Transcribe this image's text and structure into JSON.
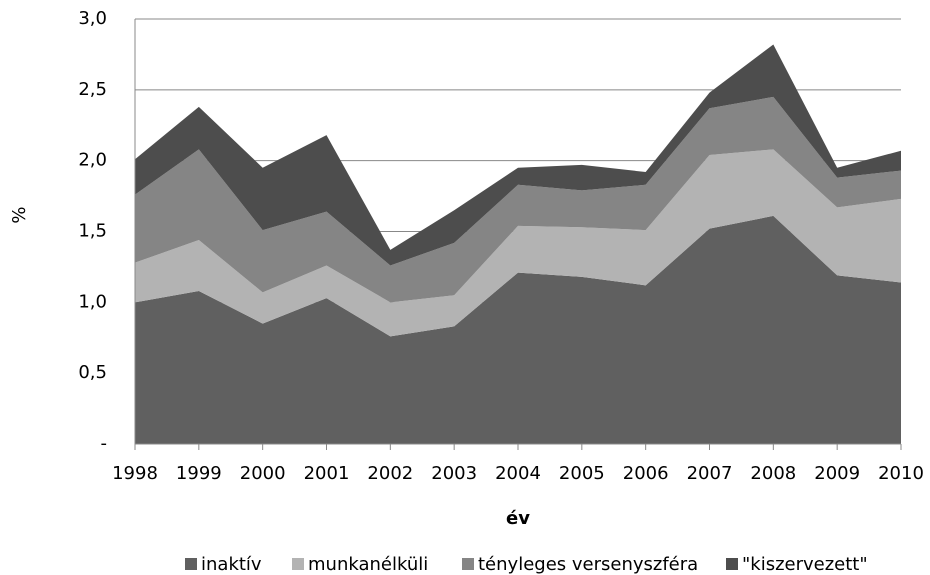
{
  "chart_data": {
    "type": "area",
    "stacked": true,
    "x_label": "év",
    "y_label": "%",
    "categories": [
      "1998",
      "1999",
      "2000",
      "2001",
      "2002",
      "2003",
      "2004",
      "2005",
      "2006",
      "2007",
      "2008",
      "2009",
      "2010"
    ],
    "series": [
      {
        "name": "inaktív",
        "color": "#606060",
        "values": [
          1.0,
          1.08,
          0.85,
          1.03,
          0.76,
          0.83,
          1.21,
          1.18,
          1.12,
          1.52,
          1.61,
          1.19,
          1.14
        ]
      },
      {
        "name": "munkanélküli",
        "color": "#b3b3b3",
        "values": [
          0.28,
          0.36,
          0.22,
          0.23,
          0.24,
          0.22,
          0.33,
          0.35,
          0.39,
          0.52,
          0.47,
          0.48,
          0.59
        ]
      },
      {
        "name": "tényleges versenyszféra",
        "color": "#858585",
        "values": [
          0.48,
          0.64,
          0.44,
          0.38,
          0.26,
          0.37,
          0.29,
          0.26,
          0.32,
          0.33,
          0.37,
          0.21,
          0.2
        ]
      },
      {
        "name": "\"kiszervezett\"",
        "color": "#4d4d4d",
        "values": [
          0.25,
          0.3,
          0.44,
          0.54,
          0.11,
          0.23,
          0.12,
          0.18,
          0.09,
          0.11,
          0.37,
          0.07,
          0.14
        ]
      }
    ],
    "ylim": [
      0,
      3
    ],
    "yticks": [
      {
        "value": 0,
        "label": "-"
      },
      {
        "value": 0.5,
        "label": "0,5"
      },
      {
        "value": 1,
        "label": "1,0"
      },
      {
        "value": 1.5,
        "label": "1,5"
      },
      {
        "value": 2,
        "label": "2,0"
      },
      {
        "value": 2.5,
        "label": "2,5"
      },
      {
        "value": 3,
        "label": "3,0"
      }
    ],
    "grid": true
  }
}
